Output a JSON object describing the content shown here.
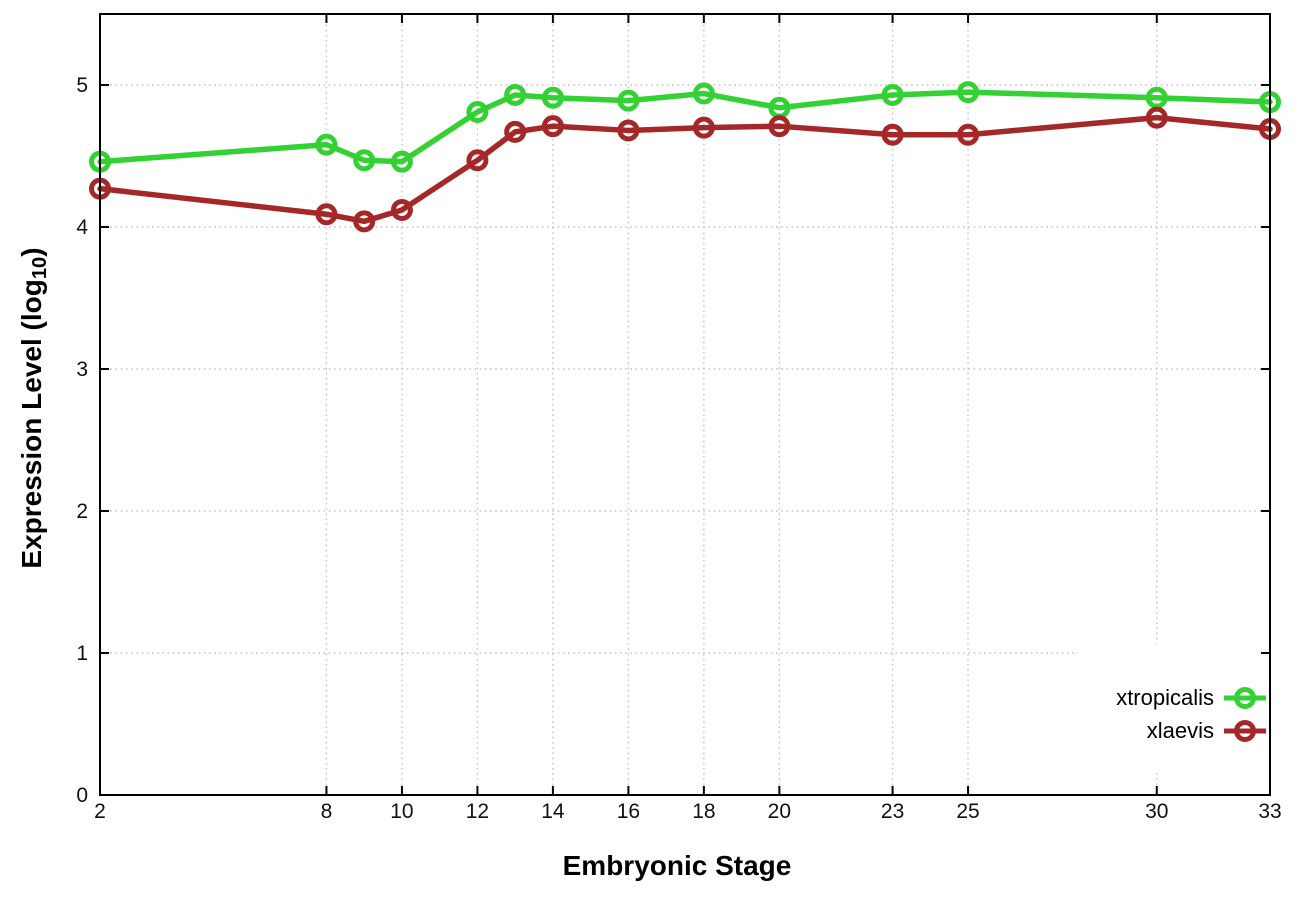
{
  "chart_data": {
    "type": "line",
    "title": "",
    "xlabel": "Embryonic Stage",
    "ylabel": "Expression Level (log10)",
    "ylabel_parts": [
      "Expression Level (log",
      "10",
      ")"
    ],
    "x": [
      2,
      8,
      9,
      10,
      12,
      13,
      14,
      16,
      18,
      20,
      23,
      25,
      30,
      33
    ],
    "x_ticks": [
      2,
      8,
      10,
      12,
      14,
      16,
      18,
      20,
      23,
      25,
      30,
      33
    ],
    "y_ticks": [
      0,
      1,
      2,
      3,
      4,
      5
    ],
    "xlim": [
      2,
      33
    ],
    "ylim": [
      0,
      5.5
    ],
    "grid": true,
    "grid_style": "dotted",
    "legend_position": "inside bottom right",
    "marker_style": "open-circle",
    "background_color": "#ffffff",
    "axis_color": "#000000",
    "grid_color": "#c3c3c3",
    "series": [
      {
        "name": "xtropicalis",
        "color": "#33d133",
        "values": [
          4.46,
          4.58,
          4.47,
          4.46,
          4.81,
          4.93,
          4.91,
          4.89,
          4.94,
          4.84,
          4.93,
          4.95,
          4.91,
          4.88
        ]
      },
      {
        "name": "xlaevis",
        "color": "#a52828",
        "values": [
          4.27,
          4.09,
          4.04,
          4.12,
          4.47,
          4.67,
          4.71,
          4.68,
          4.7,
          4.71,
          4.65,
          4.65,
          4.77,
          4.69
        ]
      }
    ]
  }
}
